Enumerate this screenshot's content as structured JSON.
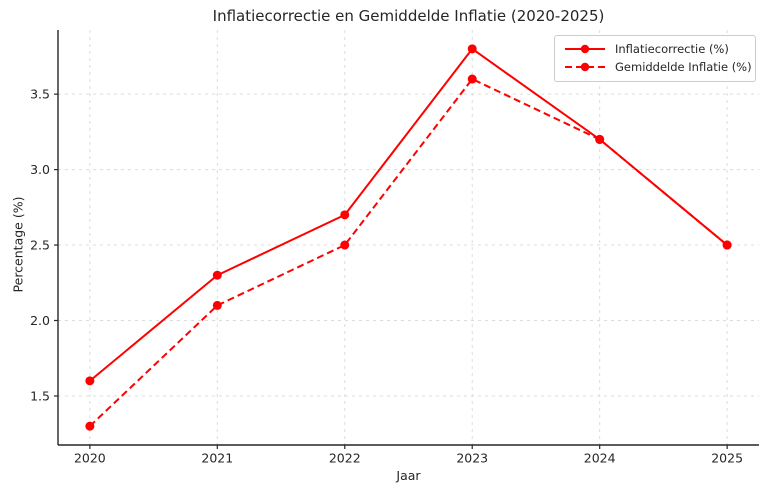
{
  "chart_data": {
    "type": "line",
    "title": "Inflatiecorrectie en Gemiddelde Inflatie (2020-2025)",
    "xlabel": "Jaar",
    "ylabel": "Percentage (%)",
    "x": [
      2020,
      2021,
      2022,
      2023,
      2024,
      2025
    ],
    "series": [
      {
        "name": "Inflatiecorrectie (%)",
        "values": [
          1.6,
          2.3,
          2.7,
          3.8,
          3.2,
          2.5
        ],
        "color": "#ff0000",
        "linestyle": "solid",
        "marker": "circle"
      },
      {
        "name": "Gemiddelde Inflatie (%)",
        "values": [
          1.3,
          2.1,
          2.5,
          3.6,
          3.2,
          2.5
        ],
        "color": "#ff0000",
        "linestyle": "dashed",
        "marker": "circle"
      }
    ],
    "xticks": {
      "values": [
        2020,
        2021,
        2022,
        2023,
        2024,
        2025
      ],
      "labels": [
        "2020",
        "2021",
        "2022",
        "2023",
        "2024",
        "2025"
      ]
    },
    "yticks": {
      "values": [
        1.5,
        2.0,
        2.5,
        3.0,
        3.5
      ],
      "labels": [
        "1.5",
        "2.0",
        "2.5",
        "3.0",
        "3.5"
      ]
    },
    "xlim": [
      2019.75,
      2025.25
    ],
    "ylim": [
      1.175,
      3.925
    ],
    "grid": true,
    "grid_linestyle": "dashed",
    "legend_position": "upper right"
  },
  "colors": {
    "accent": "#ff0000",
    "grid": "#dcdcdc",
    "axis": "#262626",
    "text": "#262626",
    "background": "#ffffff",
    "legend_border": "#cccccc"
  }
}
